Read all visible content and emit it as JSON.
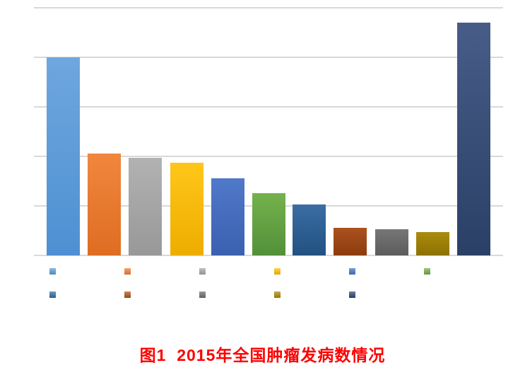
{
  "title": {
    "text": "图1  2015年全国肿瘤发病数情况",
    "color": "#FF0000"
  },
  "chart_data": {
    "type": "bar",
    "title": "图1  2015年全国肿瘤发病数情况",
    "xlabel": "",
    "ylabel": "",
    "grid": true,
    "axis_tick_labels_visible": false,
    "category_labels_visible": false,
    "legend_text_visible": false,
    "legend_position": "bottom",
    "ylim": [
      0,
      100
    ],
    "gridline_values": [
      0,
      20,
      40,
      60,
      80,
      100
    ],
    "categories": [
      "light-blue",
      "orange",
      "gray",
      "gold",
      "medium-blue",
      "green",
      "steel-blue",
      "dark-orange",
      "dark-gray",
      "dark-gold",
      "navy"
    ],
    "values": [
      80,
      41,
      39.5,
      37.5,
      31,
      25,
      20.5,
      11,
      10.5,
      9.5,
      94
    ],
    "series_colors": [
      "#5B9BD5",
      "#ED7D31",
      "#A5A5A5",
      "#FFC000",
      "#4472C4",
      "#70AD47",
      "#2E6DA4",
      "#AE5014",
      "#6D6D6D",
      "#A88800",
      "#2B4470"
    ],
    "bar_gradients": [
      {
        "top": "#6FA7DE",
        "bottom": "#4D90D2"
      },
      {
        "top": "#F0873D",
        "bottom": "#DE6D22"
      },
      {
        "top": "#B2B2B2",
        "bottom": "#989898"
      },
      {
        "top": "#FFC61A",
        "bottom": "#EDAD00"
      },
      {
        "top": "#5179C9",
        "bottom": "#3A60B0"
      },
      {
        "top": "#74B24D",
        "bottom": "#539039"
      },
      {
        "top": "#3B6DA4",
        "bottom": "#225181"
      },
      {
        "top": "#AB511F",
        "bottom": "#8C3C0E"
      },
      {
        "top": "#767676",
        "bottom": "#5C5C5C"
      },
      {
        "top": "#AB8B10",
        "bottom": "#8D7200"
      },
      {
        "top": "#475C87",
        "bottom": "#2B4066"
      }
    ],
    "legend_rows": [
      [
        "#5B9BD5",
        "#ED7D31",
        "#A5A5A5",
        "#FFC000",
        "#4472C4",
        "#70AD47"
      ],
      [
        "#2E6DA4",
        "#AE5014",
        "#6D6D6D",
        "#A88800",
        "#2B4470"
      ]
    ],
    "gridline_color": "#D9D9D9"
  }
}
